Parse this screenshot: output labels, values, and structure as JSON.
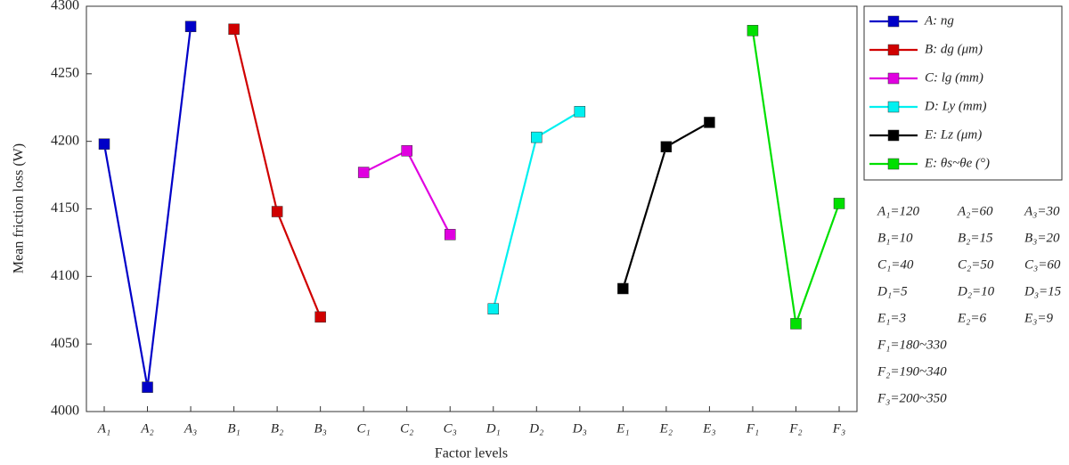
{
  "chart_data": {
    "type": "line",
    "xlabel": "Factor levels",
    "ylabel": "Mean friction loss (W)",
    "categories": [
      "A₁",
      "A₂",
      "A₃",
      "B₁",
      "B₂",
      "B₃",
      "C₁",
      "C₂",
      "C₃",
      "D₁",
      "D₂",
      "D₃",
      "E₁",
      "E₂",
      "E₃",
      "F₁",
      "F₂",
      "F₃"
    ],
    "ylim": [
      4000,
      4300
    ],
    "yticks": [
      4000,
      4050,
      4100,
      4150,
      4200,
      4250,
      4300
    ],
    "legend": "right",
    "series": [
      {
        "name": "A: ng",
        "color": "#0000c8",
        "values": [
          4198,
          4018,
          4285,
          null,
          null,
          null,
          null,
          null,
          null,
          null,
          null,
          null,
          null,
          null,
          null,
          null,
          null,
          null
        ]
      },
      {
        "name": "B: dg (μm)",
        "color": "#d00000",
        "values": [
          null,
          null,
          null,
          4283,
          4148,
          4070,
          null,
          null,
          null,
          null,
          null,
          null,
          null,
          null,
          null,
          null,
          null,
          null
        ]
      },
      {
        "name": "C: lg (mm)",
        "color": "#e000e0",
        "values": [
          null,
          null,
          null,
          null,
          null,
          null,
          4177,
          4193,
          4131,
          null,
          null,
          null,
          null,
          null,
          null,
          null,
          null,
          null
        ]
      },
      {
        "name": "D: Ly (mm)",
        "color": "#00f0f0",
        "values": [
          null,
          null,
          null,
          null,
          null,
          null,
          null,
          null,
          null,
          4076,
          4203,
          4222,
          null,
          null,
          null,
          null,
          null,
          null
        ]
      },
      {
        "name": "E: Lz (μm)",
        "color": "#000000",
        "values": [
          null,
          null,
          null,
          null,
          null,
          null,
          null,
          null,
          null,
          null,
          null,
          null,
          4091,
          4196,
          4214,
          null,
          null,
          null
        ]
      },
      {
        "name": "E: θs~θe (°)",
        "color": "#00e000",
        "values": [
          null,
          null,
          null,
          null,
          null,
          null,
          null,
          null,
          null,
          null,
          null,
          null,
          null,
          null,
          null,
          4282,
          4065,
          4154
        ]
      }
    ],
    "notes": [
      [
        "A₁=120",
        "A₂=60",
        "A₃=30"
      ],
      [
        "B₁=10",
        "B₂=15",
        "B₃=20"
      ],
      [
        "C₁=40",
        "C₂=50",
        "C₃=60"
      ],
      [
        "D₁=5",
        "D₂=10",
        "D₃=15"
      ],
      [
        "E₁=3",
        "E₂=6",
        "E₃=9"
      ],
      [
        "F₁=180~330"
      ],
      [
        "F₂=190~340"
      ],
      [
        "F₃=200~350"
      ]
    ]
  }
}
